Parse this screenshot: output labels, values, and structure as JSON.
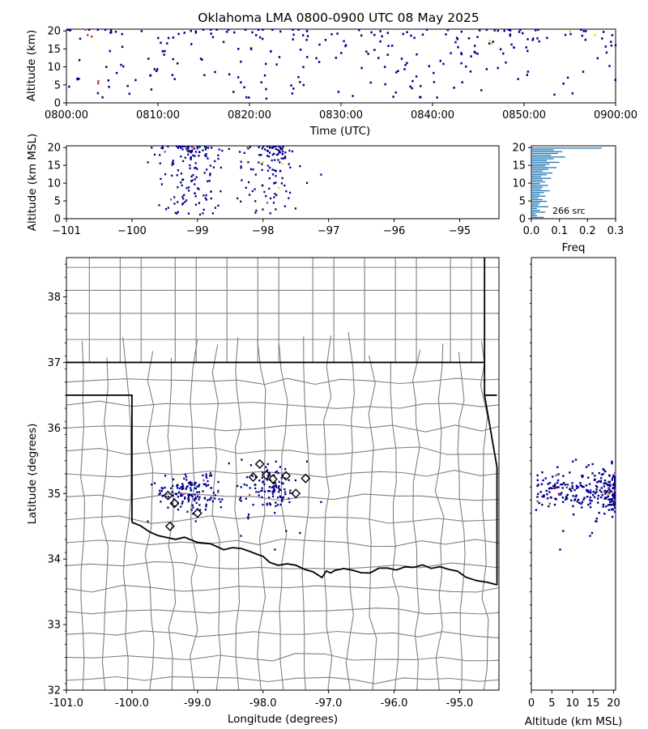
{
  "title": "Oklahoma LMA 0800-0900 UTC 08 May 2025",
  "colors": {
    "points": "#00008b",
    "early": "#c8325a",
    "late": "#ffd700",
    "hist": "#1f77b4",
    "county": "#808080",
    "state": "#000000",
    "station": "#000000"
  },
  "time_panel": {
    "ylabel": "Altitude (km)",
    "xlabel": "Time (UTC)",
    "xticks": [
      "0800:00",
      "0810:00",
      "0820:00",
      "0830:00",
      "0840:00",
      "0850:00",
      "0900:00"
    ],
    "yticks": [
      "0",
      "5",
      "10",
      "15",
      "20"
    ]
  },
  "lon_alt_panel": {
    "ylabel": "Altitude (km MSL)",
    "xticks": [
      "−101",
      "−100",
      "−99",
      "−98",
      "−97",
      "−96",
      "−95"
    ],
    "yticks": [
      "0",
      "5",
      "10",
      "15",
      "20"
    ]
  },
  "hist_panel": {
    "xlabel": "Freq",
    "xticks": [
      "0.0",
      "0.1",
      "0.2",
      "0.3"
    ],
    "yticks": [
      "0",
      "5",
      "10",
      "15",
      "20"
    ],
    "annotation": "266 src"
  },
  "plan_panel": {
    "xlabel": "Longitude (degrees)",
    "ylabel": "Latitude (degrees)",
    "xticks": [
      "-101.0",
      "-100.0",
      "-99.0",
      "-98.0",
      "-97.0",
      "-96.0",
      "-95.0"
    ],
    "yticks": [
      "32",
      "33",
      "34",
      "35",
      "36",
      "37",
      "38"
    ]
  },
  "alt_lat_panel": {
    "xlabel": "Altitude (km MSL)",
    "xticks": [
      "0",
      "5",
      "10",
      "15",
      "20"
    ]
  },
  "chart_data": {
    "type": "scatter",
    "source_count": 266,
    "time_range_utc": [
      "0800:00",
      "0900:00"
    ],
    "alt_range_km": [
      0,
      20
    ],
    "lon_range": [
      -101.0,
      -94.4
    ],
    "lat_range": [
      32.0,
      38.6
    ],
    "freq_range": [
      0,
      0.3
    ],
    "stations": [
      {
        "lon": -99.45,
        "lat": 34.97
      },
      {
        "lon": -99.35,
        "lat": 34.85
      },
      {
        "lon": -99.42,
        "lat": 34.5
      },
      {
        "lon": -99.0,
        "lat": 34.7
      },
      {
        "lon": -98.05,
        "lat": 35.45
      },
      {
        "lon": -98.15,
        "lat": 35.25
      },
      {
        "lon": -97.95,
        "lat": 35.28
      },
      {
        "lon": -97.85,
        "lat": 35.22
      },
      {
        "lon": -97.65,
        "lat": 35.27
      },
      {
        "lon": -97.5,
        "lat": 35.0
      },
      {
        "lon": -97.35,
        "lat": 35.23
      }
    ],
    "altitude_histogram": {
      "bin_km": 0.5,
      "freq": [
        0.045,
        0.02,
        0.015,
        0.05,
        0.03,
        0.02,
        0.06,
        0.025,
        0.03,
        0.055,
        0.04,
        0.025,
        0.05,
        0.03,
        0.045,
        0.065,
        0.035,
        0.04,
        0.06,
        0.03,
        0.05,
        0.04,
        0.07,
        0.035,
        0.055,
        0.075,
        0.04,
        0.06,
        0.09,
        0.05,
        0.065,
        0.1,
        0.055,
        0.08,
        0.12,
        0.07,
        0.095,
        0.11,
        0.08,
        0.25
      ]
    }
  }
}
